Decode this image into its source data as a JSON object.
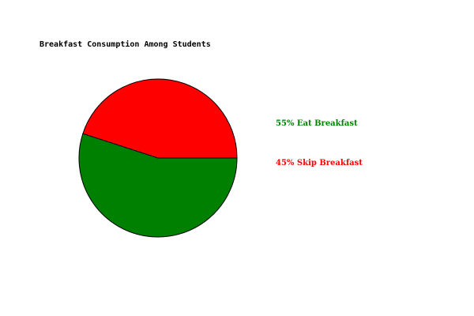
{
  "chart_data": {
    "type": "pie",
    "title": "Breakfast Consumption Among Students",
    "slices": [
      {
        "label": "55% Eat Breakfast",
        "value": 55,
        "color": "#008000"
      },
      {
        "label": "45% Skip Breakfast",
        "value": 45,
        "color": "#ff0000"
      }
    ],
    "legend_position": "right",
    "outline_color": "#000000"
  }
}
